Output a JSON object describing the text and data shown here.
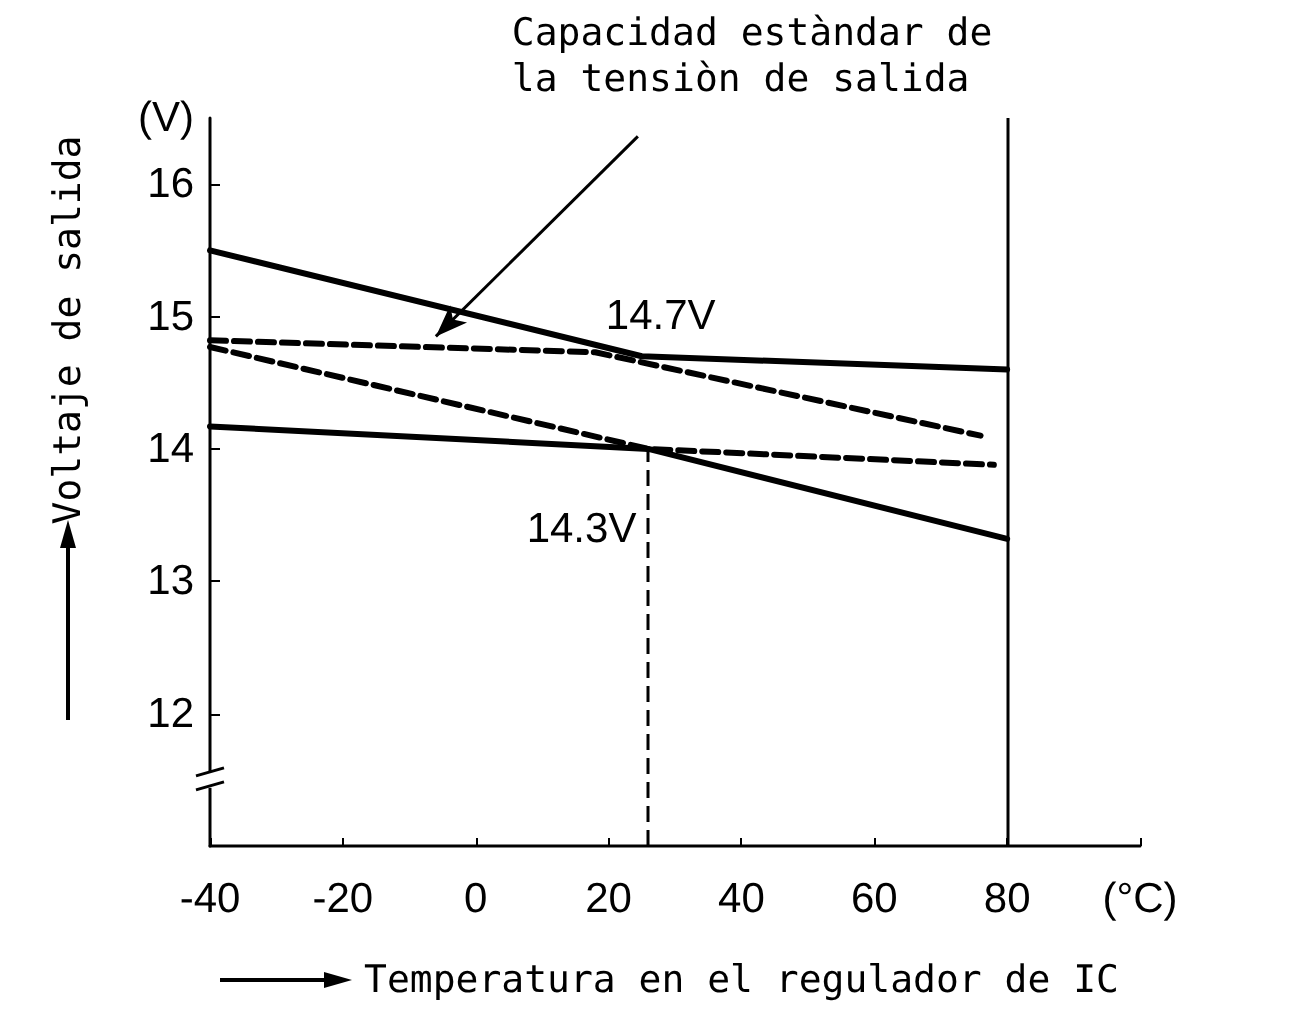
{
  "chart_data": {
    "type": "line",
    "xlabel": "Temperatura en el regulador de IC",
    "ylabel": "Voltaje de salida",
    "x": [
      -40,
      25,
      80
    ],
    "series": [
      {
        "color": "#000000",
        "line_style": "solid",
        "values": [
          15.5,
          14.7,
          14.6
        ]
      },
      {
        "color": "#000000",
        "line_style": "solid",
        "x": [
          -40,
          26,
          80
        ],
        "values": [
          14.17,
          14.0,
          13.32
        ]
      },
      {
        "color": "#000000",
        "line_style": "dashed",
        "x": [
          -40,
          18,
          76
        ],
        "values": [
          14.82,
          14.73,
          14.1
        ]
      },
      {
        "color": "#000000",
        "line_style": "dashed",
        "x": [
          -40,
          26,
          78
        ],
        "values": [
          14.77,
          14.0,
          13.88
        ]
      }
    ],
    "xlim": [
      -40,
      100
    ],
    "xticks": [
      -40,
      -20,
      0,
      20,
      40,
      60,
      80,
      {
        "value": 100,
        "label": "(°C)"
      }
    ],
    "ylim": [
      11,
      16.5
    ],
    "yticks": [
      12,
      13,
      14,
      15,
      16,
      {
        "value": 16.5,
        "label": "(V)"
      }
    ],
    "ref_lines": [
      {
        "axis": "x",
        "value": 80,
        "color": "#000000",
        "line_style": "solid"
      },
      {
        "axis": "x",
        "value": 26,
        "color": "#000000",
        "line_style": "dashed"
      }
    ],
    "annotations": [
      {
        "text": "14.7V",
        "x": 25,
        "y": 14.7
      },
      {
        "text": "14.3V",
        "x": 26,
        "y": 14.0
      },
      {
        "text": "Capacidad estàndar de\nla tensiòn de salida",
        "x": -6,
        "y": 14.85
      }
    ],
    "grid": false
  }
}
